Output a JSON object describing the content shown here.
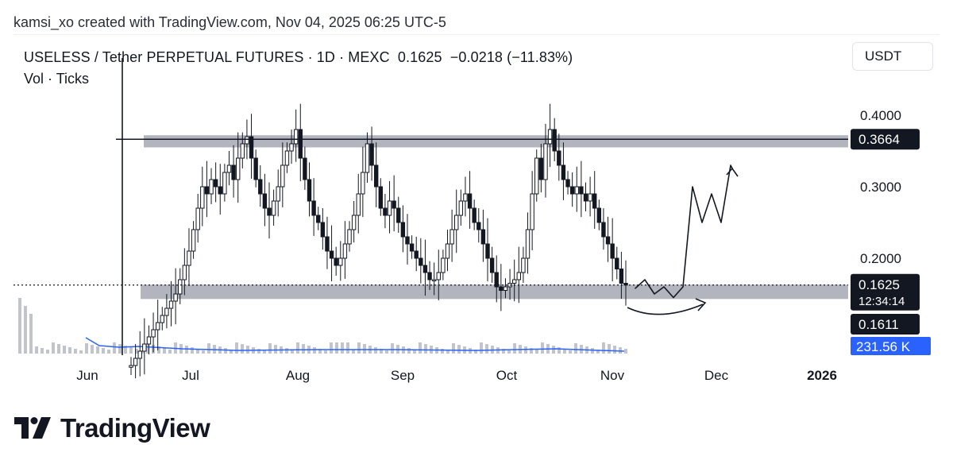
{
  "credit": "kamsi_xo created with TradingView.com, Nov 04, 2025 06:25 UTC-5",
  "legend": {
    "title": "USELESS / Tether PERPETUAL FUTURES · 1D · MEXC",
    "close": "0.1625",
    "change": "−0.0218 (−11.83%)",
    "indicators": "Vol · Ticks"
  },
  "currency_button": "USDT",
  "brand": "TradingView",
  "colors": {
    "candle": "#131722",
    "zone": "#b2b5be",
    "volume_ma": "#2962ff",
    "volume": "#c1c4cc",
    "label_bg": "#131722",
    "vol_label_bg": "#2962ff"
  },
  "chart_data": {
    "type": "candlestick",
    "y_axis": {
      "ticks": [
        "0.4000",
        "0.3000",
        "0.2000"
      ],
      "scale": "linear"
    },
    "x_axis": {
      "ticks": [
        "Jun",
        "Jul",
        "Aug",
        "Sep",
        "Oct",
        "Nov",
        "Dec",
        "2026"
      ]
    },
    "price_labels": [
      {
        "value": "0.3664",
        "kind": "horizontal-line"
      },
      {
        "value": "0.1625",
        "countdown": "12:34:14",
        "kind": "last-price"
      },
      {
        "value": "0.1611",
        "kind": "crosshair"
      },
      {
        "value": "231.56 K",
        "kind": "volume"
      }
    ],
    "zones": [
      {
        "name": "resistance",
        "from": 0.355,
        "to": 0.372
      },
      {
        "name": "support",
        "from": 0.143,
        "to": 0.163
      }
    ],
    "horizontal_line": 0.3664,
    "last_price": 0.1625,
    "closes": [
      0.05,
      0.06,
      0.07,
      0.08,
      0.09,
      0.1,
      0.11,
      0.12,
      0.13,
      0.14,
      0.15,
      0.17,
      0.19,
      0.21,
      0.24,
      0.27,
      0.3,
      0.29,
      0.31,
      0.3,
      0.29,
      0.32,
      0.33,
      0.31,
      0.34,
      0.36,
      0.37,
      0.34,
      0.31,
      0.29,
      0.27,
      0.26,
      0.28,
      0.3,
      0.33,
      0.35,
      0.36,
      0.38,
      0.34,
      0.31,
      0.28,
      0.26,
      0.25,
      0.23,
      0.21,
      0.2,
      0.19,
      0.2,
      0.22,
      0.24,
      0.26,
      0.29,
      0.32,
      0.36,
      0.33,
      0.3,
      0.27,
      0.26,
      0.28,
      0.27,
      0.25,
      0.23,
      0.22,
      0.21,
      0.2,
      0.19,
      0.18,
      0.17,
      0.17,
      0.18,
      0.2,
      0.22,
      0.24,
      0.26,
      0.28,
      0.29,
      0.27,
      0.25,
      0.24,
      0.22,
      0.2,
      0.18,
      0.16,
      0.155,
      0.16,
      0.165,
      0.17,
      0.18,
      0.2,
      0.24,
      0.29,
      0.34,
      0.31,
      0.36,
      0.38,
      0.35,
      0.33,
      0.31,
      0.3,
      0.29,
      0.3,
      0.29,
      0.28,
      0.29,
      0.27,
      0.25,
      0.23,
      0.22,
      0.2,
      0.185,
      0.165,
      0.1625
    ],
    "projection": [
      0.158,
      0.17,
      0.15,
      0.16,
      0.145,
      0.16,
      0.3,
      0.25,
      0.29,
      0.25,
      0.33
    ],
    "volume_note": "volume bars and moving average shown at chart bottom"
  }
}
